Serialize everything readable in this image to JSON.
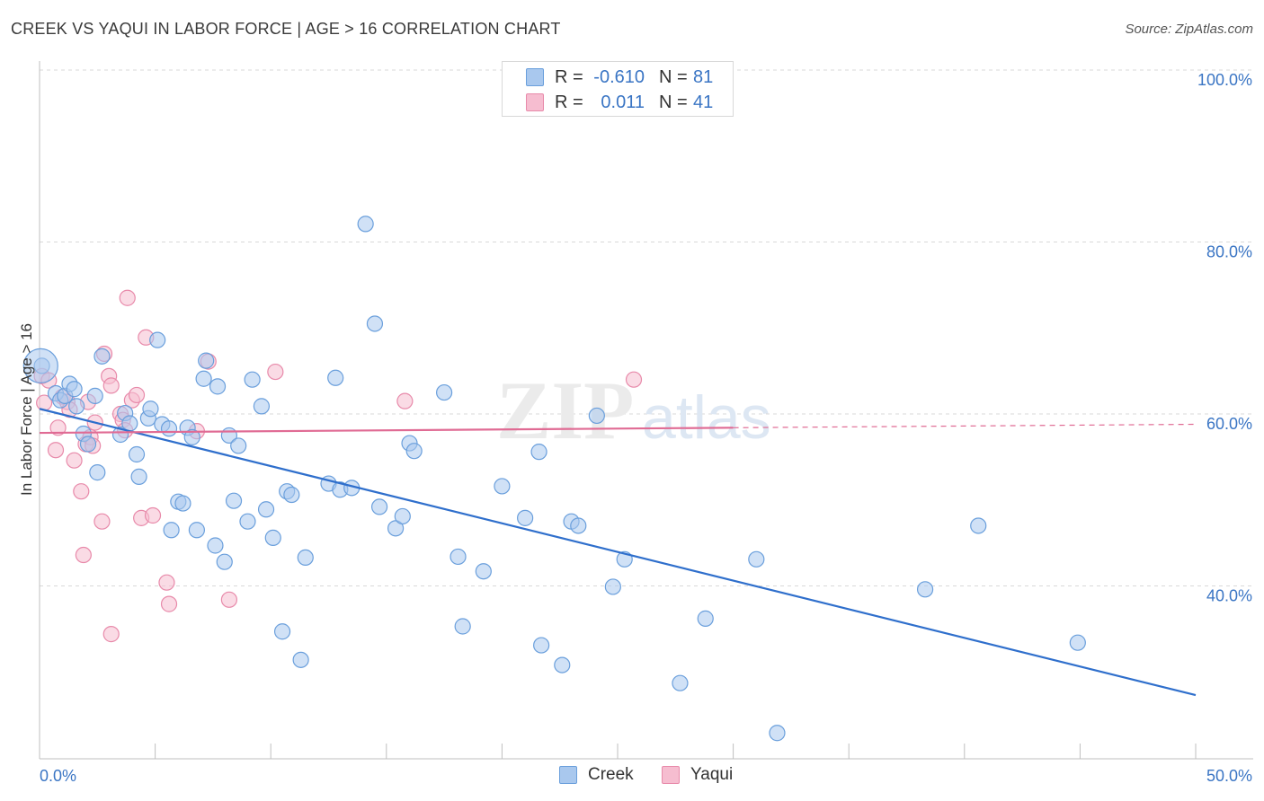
{
  "title": "CREEK VS YAQUI IN LABOR FORCE | AGE > 16 CORRELATION CHART",
  "source": "Source: ZipAtlas.com",
  "watermark": {
    "zip": "ZIP",
    "atlas": "atlas"
  },
  "legend": {
    "r_label": "R =",
    "n_label": "N =",
    "creek": {
      "r": "-0.610",
      "n": "81"
    },
    "yaqui": {
      "r": "0.011",
      "n": "41"
    }
  },
  "colors": {
    "creek_fill": "#a9c8ee",
    "creek_stroke": "#6a9fdc",
    "creek_line": "#2f6fcc",
    "yaqui_fill": "#f6bdd0",
    "yaqui_stroke": "#e88aaa",
    "yaqui_line": "#e06b94",
    "axis_text": "#3a75c4",
    "grid": "#d9d9d9"
  },
  "chart_data": {
    "type": "scatter",
    "title": "CREEK VS YAQUI IN LABOR FORCE | AGE > 16 CORRELATION CHART",
    "xlabel": "",
    "ylabel": "In Labor Force | Age > 16",
    "xlim": [
      0,
      50
    ],
    "ylim": [
      22,
      102
    ],
    "x_tick_labels": [
      "0.0%",
      "50.0%"
    ],
    "y_ticks": [
      40,
      60,
      80,
      100
    ],
    "y_tick_labels": [
      "40.0%",
      "60.0%",
      "80.0%",
      "100.0%"
    ],
    "grid": true,
    "legend_position": "top-center",
    "series": [
      {
        "name": "Creek",
        "points": [
          [
            0.1,
            65.6
          ],
          [
            0.7,
            62.4
          ],
          [
            0.9,
            61.6
          ],
          [
            1.1,
            62.1
          ],
          [
            1.3,
            63.5
          ],
          [
            1.5,
            62.9
          ],
          [
            1.6,
            60.9
          ],
          [
            1.9,
            57.7
          ],
          [
            2.1,
            56.5
          ],
          [
            2.4,
            62.1
          ],
          [
            2.5,
            53.2
          ],
          [
            2.7,
            66.7
          ],
          [
            3.5,
            57.6
          ],
          [
            3.7,
            60.1
          ],
          [
            3.9,
            58.9
          ],
          [
            4.2,
            55.3
          ],
          [
            4.3,
            52.7
          ],
          [
            4.7,
            59.5
          ],
          [
            4.8,
            60.6
          ],
          [
            5.1,
            68.6
          ],
          [
            5.3,
            58.8
          ],
          [
            5.6,
            58.3
          ],
          [
            5.7,
            46.5
          ],
          [
            6.0,
            49.8
          ],
          [
            6.2,
            49.6
          ],
          [
            6.4,
            58.4
          ],
          [
            6.6,
            57.3
          ],
          [
            6.8,
            46.5
          ],
          [
            7.1,
            64.1
          ],
          [
            7.2,
            66.2
          ],
          [
            7.6,
            44.7
          ],
          [
            7.7,
            63.2
          ],
          [
            8.0,
            42.8
          ],
          [
            8.2,
            57.5
          ],
          [
            8.4,
            49.9
          ],
          [
            8.6,
            56.3
          ],
          [
            9.0,
            47.5
          ],
          [
            9.2,
            64.0
          ],
          [
            9.6,
            60.9
          ],
          [
            9.8,
            48.9
          ],
          [
            10.1,
            45.6
          ],
          [
            10.5,
            34.7
          ],
          [
            10.7,
            51.0
          ],
          [
            10.9,
            50.6
          ],
          [
            11.3,
            31.4
          ],
          [
            11.5,
            43.3
          ],
          [
            12.5,
            51.9
          ],
          [
            12.8,
            64.2
          ],
          [
            13.0,
            51.2
          ],
          [
            13.5,
            51.4
          ],
          [
            14.1,
            82.1
          ],
          [
            14.5,
            70.5
          ],
          [
            14.7,
            49.2
          ],
          [
            15.4,
            46.7
          ],
          [
            15.7,
            48.1
          ],
          [
            16.0,
            56.6
          ],
          [
            16.2,
            55.7
          ],
          [
            17.5,
            62.5
          ],
          [
            18.1,
            43.4
          ],
          [
            18.3,
            35.3
          ],
          [
            19.2,
            41.7
          ],
          [
            20.0,
            51.6
          ],
          [
            21.0,
            47.9
          ],
          [
            21.6,
            55.6
          ],
          [
            21.7,
            33.1
          ],
          [
            22.6,
            30.8
          ],
          [
            23.0,
            47.5
          ],
          [
            23.3,
            47.0
          ],
          [
            24.1,
            59.8
          ],
          [
            24.8,
            39.9
          ],
          [
            25.3,
            43.1
          ],
          [
            27.7,
            28.7
          ],
          [
            28.8,
            36.2
          ],
          [
            31.0,
            43.1
          ],
          [
            31.9,
            22.9
          ],
          [
            38.3,
            39.6
          ],
          [
            40.6,
            47.0
          ],
          [
            44.9,
            33.4
          ]
        ]
      },
      {
        "name": "Yaqui",
        "points": [
          [
            0.1,
            64.4
          ],
          [
            0.2,
            61.3
          ],
          [
            0.4,
            63.9
          ],
          [
            0.7,
            55.8
          ],
          [
            0.8,
            58.4
          ],
          [
            1.0,
            62.0
          ],
          [
            1.2,
            61.4
          ],
          [
            1.3,
            60.5
          ],
          [
            1.5,
            54.6
          ],
          [
            1.8,
            51.0
          ],
          [
            1.9,
            43.6
          ],
          [
            2.0,
            56.5
          ],
          [
            2.1,
            61.4
          ],
          [
            2.2,
            57.3
          ],
          [
            2.3,
            56.3
          ],
          [
            2.4,
            59.0
          ],
          [
            2.7,
            47.5
          ],
          [
            2.8,
            67.0
          ],
          [
            3.0,
            64.4
          ],
          [
            3.1,
            63.3
          ],
          [
            3.1,
            34.4
          ],
          [
            3.5,
            60.0
          ],
          [
            3.6,
            59.3
          ],
          [
            3.7,
            58.1
          ],
          [
            3.8,
            73.5
          ],
          [
            4.0,
            61.6
          ],
          [
            4.2,
            62.2
          ],
          [
            4.4,
            47.9
          ],
          [
            4.6,
            68.9
          ],
          [
            4.9,
            48.2
          ],
          [
            5.5,
            40.4
          ],
          [
            5.6,
            37.9
          ],
          [
            6.8,
            58.0
          ],
          [
            7.3,
            66.1
          ],
          [
            8.2,
            38.4
          ],
          [
            10.2,
            64.9
          ],
          [
            15.8,
            61.5
          ],
          [
            25.7,
            64.0
          ]
        ]
      }
    ],
    "trend_lines": [
      {
        "name": "Creek",
        "x0": 0,
        "y0": 60.6,
        "x1": 50,
        "y1": 27.3
      },
      {
        "name": "Yaqui",
        "x0": 0,
        "y0": 57.8,
        "x1": 30,
        "y1": 58.4,
        "dashed_to": 50,
        "dashed_y": 58.8
      }
    ]
  }
}
